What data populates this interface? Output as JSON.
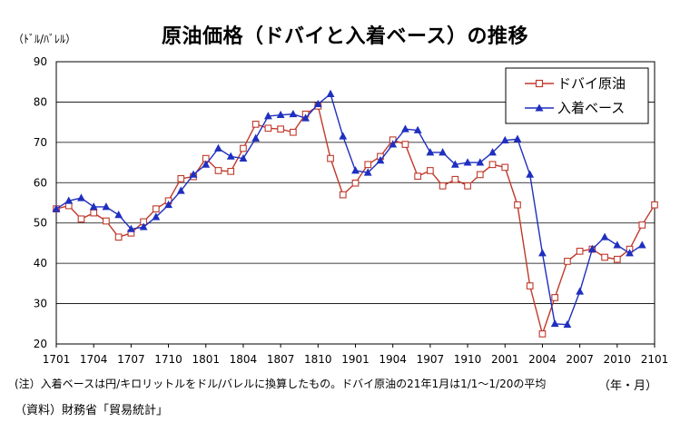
{
  "title": "原油価格（ドバイと入着ベース）の推移",
  "unit_label": "（ﾄﾞﾙ/ﾊﾞﾚﾙ）",
  "x_unit_label": "（年・月）",
  "note": "(注）入着ベースは円/キロリットルをドル/バレルに換算したもの。ドバイ原油の21年1月は1/1～1/20の平均",
  "source": "（資料）財務省「貿易統計」",
  "chart_data": {
    "type": "line",
    "x": [
      "1701",
      "1702",
      "1703",
      "1704",
      "1705",
      "1706",
      "1707",
      "1708",
      "1709",
      "1710",
      "1711",
      "1712",
      "1801",
      "1802",
      "1803",
      "1804",
      "1805",
      "1806",
      "1807",
      "1808",
      "1809",
      "1810",
      "1811",
      "1812",
      "1901",
      "1902",
      "1903",
      "1904",
      "1905",
      "1906",
      "1907",
      "1908",
      "1909",
      "1910",
      "1911",
      "1912",
      "2001",
      "2002",
      "2003",
      "2004",
      "2005",
      "2006",
      "2007",
      "2008",
      "2009",
      "2010",
      "2011",
      "2012",
      "2101"
    ],
    "x_tick_labels": [
      "1701",
      "1704",
      "1707",
      "1710",
      "1801",
      "1804",
      "1807",
      "1810",
      "1901",
      "1904",
      "1907",
      "1910",
      "2001",
      "2004",
      "2007",
      "2010",
      "2101"
    ],
    "ylim": [
      20,
      90
    ],
    "y_ticks": [
      20,
      30,
      40,
      50,
      60,
      70,
      80,
      90
    ],
    "grid": true,
    "legend_position": "top-right",
    "series": [
      {
        "name": "ドバイ原油",
        "color": "#c0392b",
        "marker": "square-open",
        "values": [
          53.5,
          54.3,
          51.0,
          52.5,
          50.5,
          46.5,
          47.5,
          50.3,
          53.5,
          55.5,
          61.0,
          61.5,
          66.0,
          63.0,
          62.8,
          68.5,
          74.5,
          73.5,
          73.3,
          72.5,
          77.0,
          79.0,
          66.0,
          57.0,
          59.9,
          64.5,
          66.5,
          70.6,
          69.5,
          61.6,
          63.0,
          59.2,
          60.8,
          59.2,
          62.0,
          64.5,
          63.8,
          54.5,
          34.4,
          22.5,
          31.5,
          40.5,
          43.0,
          43.5,
          41.5,
          41.0,
          43.5,
          49.5,
          54.5
        ]
      },
      {
        "name": "入着ベース",
        "color": "#1f2fbf",
        "marker": "triangle-filled",
        "values": [
          53.5,
          55.5,
          56.2,
          54.0,
          54.0,
          52.0,
          48.5,
          49.0,
          51.5,
          54.5,
          58.0,
          62.0,
          64.5,
          68.5,
          66.5,
          66.0,
          71.0,
          76.5,
          76.8,
          77.0,
          76.0,
          79.5,
          82.0,
          71.5,
          63.0,
          62.5,
          65.5,
          69.5,
          73.3,
          73.0,
          67.5,
          67.5,
          64.5,
          65.0,
          65.0,
          67.5,
          70.5,
          70.8,
          62.0,
          42.5,
          25.0,
          24.8,
          33.0,
          43.5,
          46.5,
          44.5,
          42.5,
          44.5,
          null
        ]
      }
    ]
  }
}
